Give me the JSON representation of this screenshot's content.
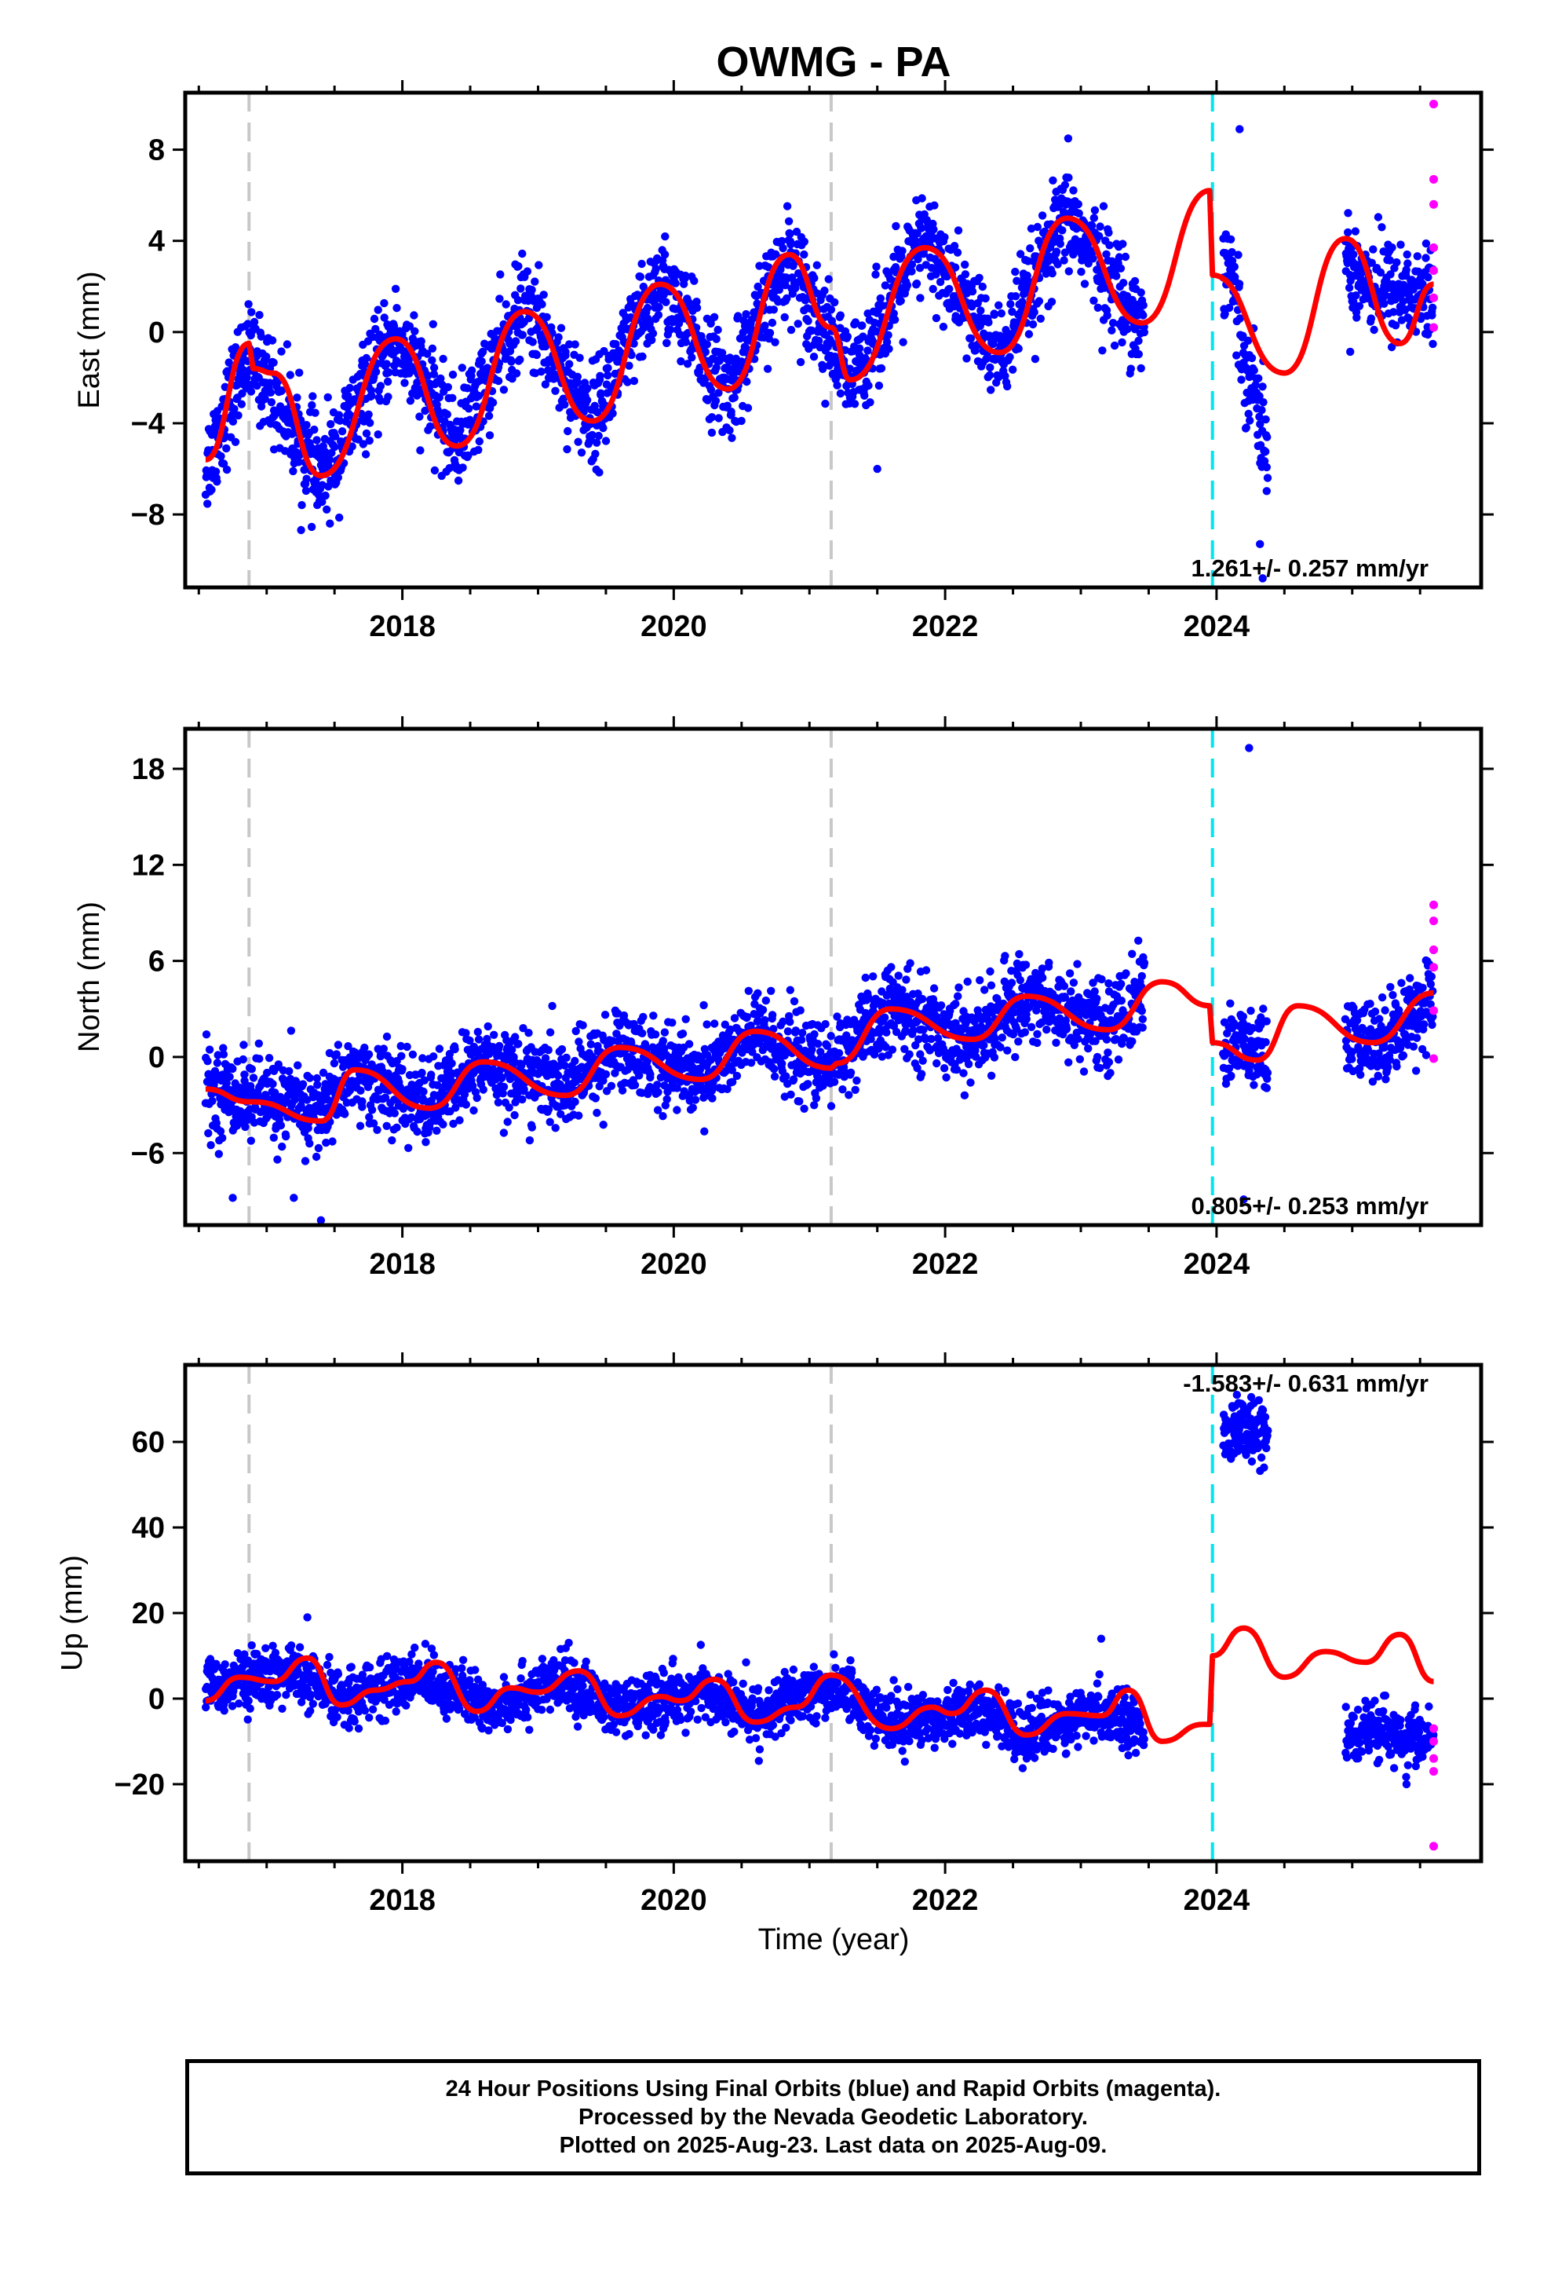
{
  "title": "OWMG - PA",
  "colors": {
    "final_points": "#0000ff",
    "rapid_points": "#ff00ff",
    "model_line": "#ff0000",
    "equipment_change": "#c8c8c8",
    "offset_line": "#00e5ee"
  },
  "x_axis": {
    "label": "Time (year)",
    "range": [
      2016.4,
      2025.95
    ],
    "ticks": [
      2018,
      2020,
      2022,
      2024
    ],
    "tick_labels": [
      "2018",
      "2020",
      "2022",
      "2024"
    ],
    "minor_ticks": [
      2016.5,
      2017,
      2017.5,
      2018.5,
      2019,
      2019.5,
      2020.5,
      2021,
      2021.5,
      2022.5,
      2023,
      2023.5,
      2024.5,
      2025,
      2025.5
    ]
  },
  "vertical_lines": [
    {
      "type": "equipment",
      "x": 2016.87
    },
    {
      "type": "equipment",
      "x": 2021.16
    },
    {
      "type": "offset",
      "x": 2023.97
    }
  ],
  "chart_data": [
    {
      "type": "scatter",
      "component": "east",
      "ylabel": "East (mm)",
      "ylim": [
        -11.2,
        10.5
      ],
      "yticks": [
        -8,
        -4,
        0,
        4,
        8
      ],
      "ytick_labels": [
        "−8",
        "−4",
        "0",
        "4",
        "8"
      ],
      "rate_text": "1.261+/- 0.257 mm/yr",
      "series": [
        {
          "kind": "final",
          "data_spans": [
            [
              2016.55,
              2023.47
            ],
            [
              2024.05,
              2024.38
            ],
            [
              2024.95,
              2025.6
            ]
          ],
          "trend": [
            [
              2016.55,
              -6
            ],
            [
              2016.85,
              -1
            ],
            [
              2017.0,
              -2
            ],
            [
              2017.4,
              -6.5
            ],
            [
              2017.95,
              -0.2
            ],
            [
              2018.4,
              -4.8
            ],
            [
              2018.9,
              1.2
            ],
            [
              2019.4,
              -3.9
            ],
            [
              2019.9,
              2.2
            ],
            [
              2020.4,
              -2.7
            ],
            [
              2020.85,
              3.4
            ],
            [
              2021.3,
              -2.2
            ],
            [
              2021.85,
              4.1
            ],
            [
              2022.4,
              -1.2
            ],
            [
              2022.9,
              5.1
            ],
            [
              2023.45,
              0.3
            ],
            [
              2024.1,
              3
            ],
            [
              2024.2,
              -1
            ],
            [
              2024.3,
              -3
            ],
            [
              2024.38,
              -5.5
            ],
            [
              2024.95,
              3
            ],
            [
              2025.2,
              2
            ],
            [
              2025.6,
              1.5
            ]
          ],
          "scatter_sd": 1.1
        },
        {
          "kind": "rapid",
          "points": [
            [
              2025.6,
              10
            ],
            [
              2025.6,
              6.7
            ],
            [
              2025.6,
              5.6
            ],
            [
              2025.6,
              3.7
            ],
            [
              2025.6,
              2.7
            ],
            [
              2025.6,
              1.5
            ],
            [
              2025.6,
              0.2
            ]
          ]
        }
      ],
      "outliers": [
        [
          2024.17,
          8.9
        ],
        [
          2024.05,
          4.1
        ],
        [
          2021.5,
          -6
        ],
        [
          2024.32,
          -9.3
        ],
        [
          2024.34,
          -10.8
        ]
      ],
      "model": [
        [
          2016.55,
          -5.6
        ],
        [
          2016.87,
          -0.5
        ],
        [
          2016.9,
          -1.6
        ],
        [
          2017.05,
          -1.8
        ],
        [
          2017.4,
          -6.3
        ],
        [
          2017.95,
          -0.3
        ],
        [
          2018.4,
          -5
        ],
        [
          2018.9,
          0.9
        ],
        [
          2019.4,
          -3.9
        ],
        [
          2019.9,
          2.1
        ],
        [
          2020.4,
          -2.5
        ],
        [
          2020.85,
          3.4
        ],
        [
          2021.16,
          0.2
        ],
        [
          2021.3,
          -2.1
        ],
        [
          2021.85,
          3.7
        ],
        [
          2022.4,
          -0.9
        ],
        [
          2022.9,
          5
        ],
        [
          2023.45,
          0.4
        ],
        [
          2023.95,
          6.2
        ],
        [
          2023.97,
          2.5
        ],
        [
          2024.5,
          -1.8
        ],
        [
          2024.95,
          4.1
        ],
        [
          2025.35,
          -0.5
        ],
        [
          2025.6,
          2.1
        ]
      ]
    },
    {
      "type": "scatter",
      "component": "north",
      "ylabel": "North (mm)",
      "ylim": [
        -10.5,
        20.5
      ],
      "yticks": [
        -6,
        0,
        6,
        12,
        18
      ],
      "ytick_labels": [
        "−6",
        "0",
        "6",
        "12",
        "18"
      ],
      "rate_text": "0.805+/- 0.253 mm/yr",
      "series": [
        {
          "kind": "final",
          "data_spans": [
            [
              2016.55,
              2023.47
            ],
            [
              2024.05,
              2024.38
            ],
            [
              2024.95,
              2025.6
            ]
          ],
          "trend": [
            [
              2016.55,
              -2
            ],
            [
              2017.1,
              -2.8
            ],
            [
              2017.4,
              -3.5
            ],
            [
              2017.6,
              -1
            ],
            [
              2018.2,
              -3
            ],
            [
              2018.6,
              -0.3
            ],
            [
              2019.2,
              -2
            ],
            [
              2019.6,
              0.6
            ],
            [
              2020.2,
              -1.2
            ],
            [
              2020.6,
              1.5
            ],
            [
              2021.1,
              -0.8
            ],
            [
              2021.6,
              3
            ],
            [
              2022.2,
              1
            ],
            [
              2022.6,
              3.9
            ],
            [
              2023.2,
              1.8
            ],
            [
              2023.47,
              4
            ],
            [
              2024.05,
              1
            ],
            [
              2024.38,
              0
            ],
            [
              2024.95,
              1
            ],
            [
              2025.2,
              0.8
            ],
            [
              2025.6,
              4
            ]
          ],
          "scatter_sd": 1.3
        },
        {
          "kind": "rapid",
          "points": [
            [
              2025.6,
              9.5
            ],
            [
              2025.6,
              8.5
            ],
            [
              2025.6,
              6.7
            ],
            [
              2025.6,
              5.6
            ],
            [
              2025.6,
              2.9
            ],
            [
              2025.6,
              -0.1
            ]
          ]
        }
      ],
      "outliers": [
        [
          2024.24,
          19.3
        ],
        [
          2017.4,
          -10.2
        ],
        [
          2017.2,
          -8.8
        ],
        [
          2016.75,
          -8.8
        ],
        [
          2024.2,
          -8.9
        ]
      ],
      "model": [
        [
          2016.55,
          -2
        ],
        [
          2016.87,
          -2.8
        ],
        [
          2016.9,
          -2.8
        ],
        [
          2017.4,
          -4
        ],
        [
          2017.65,
          -0.8
        ],
        [
          2018.2,
          -3.2
        ],
        [
          2018.6,
          -0.3
        ],
        [
          2019.2,
          -2.4
        ],
        [
          2019.6,
          0.6
        ],
        [
          2020.2,
          -1.4
        ],
        [
          2020.6,
          1.6
        ],
        [
          2021.16,
          -0.7
        ],
        [
          2021.2,
          -0.4
        ],
        [
          2021.6,
          3
        ],
        [
          2022.2,
          1.1
        ],
        [
          2022.6,
          3.8
        ],
        [
          2023.2,
          1.7
        ],
        [
          2023.6,
          4.7
        ],
        [
          2023.95,
          3.2
        ],
        [
          2023.97,
          0.9
        ],
        [
          2024.3,
          -0.2
        ],
        [
          2024.6,
          3.2
        ],
        [
          2025.15,
          0.9
        ],
        [
          2025.6,
          4
        ]
      ]
    },
    {
      "type": "scatter",
      "component": "up",
      "ylabel": "Up (mm)",
      "ylim": [
        -38,
        78
      ],
      "yticks": [
        -20,
        0,
        20,
        40,
        60
      ],
      "ytick_labels": [
        "−20",
        "0",
        "20",
        "40",
        "60"
      ],
      "rate_text": "-1.583+/- 0.631 mm/yr",
      "series": [
        {
          "kind": "final",
          "data_spans": [
            [
              2016.55,
              2023.47
            ],
            [
              2024.05,
              2024.38
            ],
            [
              2024.95,
              2025.6
            ]
          ],
          "trend": [
            [
              2016.55,
              3
            ],
            [
              2017.2,
              6
            ],
            [
              2017.5,
              0
            ],
            [
              2018.2,
              5
            ],
            [
              2018.6,
              -2
            ],
            [
              2019.2,
              4
            ],
            [
              2019.6,
              -3
            ],
            [
              2020.2,
              2
            ],
            [
              2020.6,
              -4
            ],
            [
              2021.2,
              3
            ],
            [
              2021.6,
              -6
            ],
            [
              2022.2,
              -2
            ],
            [
              2022.6,
              -8
            ],
            [
              2023.2,
              -3
            ],
            [
              2023.47,
              -7
            ],
            [
              2024.05,
              63
            ],
            [
              2024.38,
              62
            ],
            [
              2024.95,
              -8
            ],
            [
              2025.2,
              -8
            ],
            [
              2025.6,
              -10
            ]
          ],
          "scatter_sd": 3.2
        },
        {
          "kind": "rapid",
          "points": [
            [
              2025.6,
              -7
            ],
            [
              2025.6,
              -10
            ],
            [
              2025.6,
              -14
            ],
            [
              2025.6,
              -17
            ],
            [
              2025.6,
              -34.5
            ]
          ]
        }
      ],
      "outliers": [
        [
          2023.15,
          14
        ],
        [
          2017.3,
          19
        ],
        [
          2025.4,
          -20
        ],
        [
          2024.35,
          54
        ]
      ],
      "model": [
        [
          2016.55,
          -0.5
        ],
        [
          2016.8,
          5
        ],
        [
          2017.05,
          4
        ],
        [
          2017.3,
          9.5
        ],
        [
          2017.55,
          -1.5
        ],
        [
          2017.8,
          2
        ],
        [
          2018.05,
          4
        ],
        [
          2018.25,
          8.5
        ],
        [
          2018.55,
          -3
        ],
        [
          2018.8,
          2.5
        ],
        [
          2019.0,
          1.5
        ],
        [
          2019.3,
          6.5
        ],
        [
          2019.6,
          -4
        ],
        [
          2019.9,
          0.5
        ],
        [
          2020.05,
          -0.5
        ],
        [
          2020.3,
          4.5
        ],
        [
          2020.6,
          -5.5
        ],
        [
          2020.9,
          -2
        ],
        [
          2021.16,
          5.5
        ],
        [
          2021.6,
          -7
        ],
        [
          2021.9,
          -2
        ],
        [
          2022.05,
          -3.5
        ],
        [
          2022.3,
          2
        ],
        [
          2022.6,
          -8.5
        ],
        [
          2022.9,
          -3.5
        ],
        [
          2023.15,
          -4
        ],
        [
          2023.35,
          2
        ],
        [
          2023.6,
          -10
        ],
        [
          2023.9,
          -6
        ],
        [
          2023.95,
          -6
        ],
        [
          2023.97,
          10
        ],
        [
          2024.2,
          16.5
        ],
        [
          2024.5,
          5
        ],
        [
          2024.8,
          11
        ],
        [
          2025.1,
          8.5
        ],
        [
          2025.35,
          15
        ],
        [
          2025.6,
          4
        ]
      ]
    }
  ],
  "footer": {
    "line1": "24 Hour Positions Using Final Orbits (blue) and Rapid Orbits (magenta).",
    "line2": "Processed by the Nevada Geodetic Laboratory.",
    "line3": "Plotted on 2025-Aug-23. Last data on 2025-Aug-09."
  }
}
